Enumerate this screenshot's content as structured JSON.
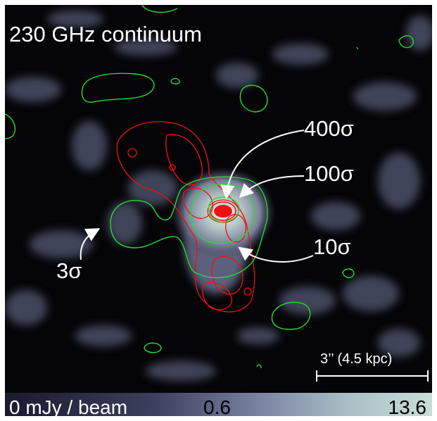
{
  "title": "230 GHz continuum",
  "annotations": {
    "a400": "400σ",
    "a100": "100σ",
    "a10": "10σ",
    "a3": "3σ"
  },
  "scalebar": {
    "label": "3’’ (4.5 kpc)"
  },
  "colorbar": {
    "label_min": "0 mJy / beam",
    "label_mid": "0.6",
    "label_max": "13.6"
  },
  "colors": {
    "background": "#050508",
    "noise": "#5a5f7a",
    "contour_dust": "#22dd33",
    "contour_gas": "#ee1111",
    "annotation": "#ffffff"
  }
}
